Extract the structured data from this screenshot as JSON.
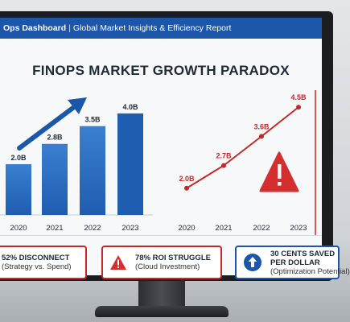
{
  "header": {
    "title_bold": "Ops Dashboard",
    "separator": "|",
    "subtitle": "Global Market Insights & Efficiency Report"
  },
  "page_title": "FINOPS MARKET GROWTH PARADOX",
  "colors": {
    "header": "#1c56a8",
    "bar": "#2f6fc2",
    "trend": "#c62828",
    "warning": "#d32f2f"
  },
  "chart_data": [
    {
      "type": "bar",
      "categories": [
        "2020",
        "2021",
        "2022",
        "2023"
      ],
      "values": [
        2.0,
        2.8,
        3.5,
        4.0
      ],
      "labels": [
        "2.0B",
        "2.8B",
        "3.5B",
        "4.0B"
      ],
      "ylim": [
        0,
        4.6
      ],
      "annotation": "up-trend-arrow"
    },
    {
      "type": "line",
      "categories": [
        "2020",
        "2021",
        "2022",
        "2023"
      ],
      "values": [
        2.0,
        2.7,
        3.6,
        4.5
      ],
      "labels": [
        "2.0B",
        "2.7B",
        "3.6B",
        "4.5B"
      ],
      "ylim": [
        1.3,
        4.9
      ],
      "annotation": "warning-triangle-icon"
    }
  ],
  "cards": [
    {
      "icon": "no-icon",
      "line1": "52% DISCONNECT",
      "line2": "(Strategy vs. Spend)"
    },
    {
      "icon": "warning-icon",
      "line1": "78% ROI STRUGGLE",
      "line2": "(Cloud Investment)"
    },
    {
      "icon": "arrow-up-circle-icon",
      "line1": "30 CENTS SAVED",
      "line1b": "PER DOLLAR",
      "line2": "(Optimization Potential)"
    }
  ]
}
